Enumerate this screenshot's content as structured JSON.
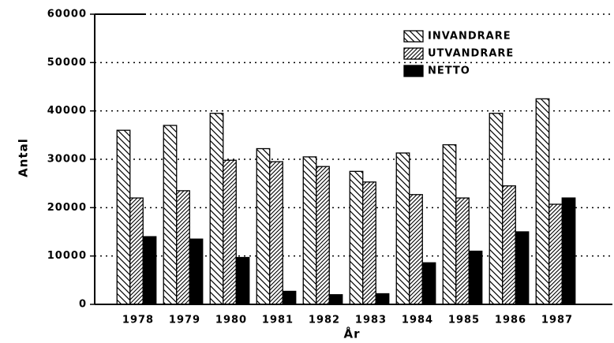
{
  "chart_data": {
    "type": "bar",
    "categories": [
      "1978",
      "1979",
      "1980",
      "1981",
      "1982",
      "1983",
      "1984",
      "1985",
      "1986",
      "1987"
    ],
    "series": [
      {
        "name": "INVANDRARE",
        "color": "#000000",
        "hatch": "backslash",
        "values": [
          36000,
          37000,
          39500,
          32200,
          30500,
          27500,
          31300,
          33000,
          39500,
          42500
        ]
      },
      {
        "name": "UTVANDRARE",
        "color": "#000000",
        "hatch": "slash",
        "values": [
          22000,
          23500,
          29800,
          29500,
          28500,
          25300,
          22700,
          22000,
          24500,
          20700
        ]
      },
      {
        "name": "NETTO",
        "color": "#000000",
        "hatch": "solid",
        "values": [
          14000,
          13500,
          9700,
          2700,
          2000,
          2200,
          8600,
          11000,
          15000,
          22000
        ]
      }
    ],
    "xlabel": "År",
    "ylabel": "Antal",
    "ylim": [
      0,
      60000
    ],
    "yticks": [
      0,
      10000,
      20000,
      30000,
      40000,
      50000,
      60000
    ],
    "grid": true,
    "legend": "upper right"
  }
}
